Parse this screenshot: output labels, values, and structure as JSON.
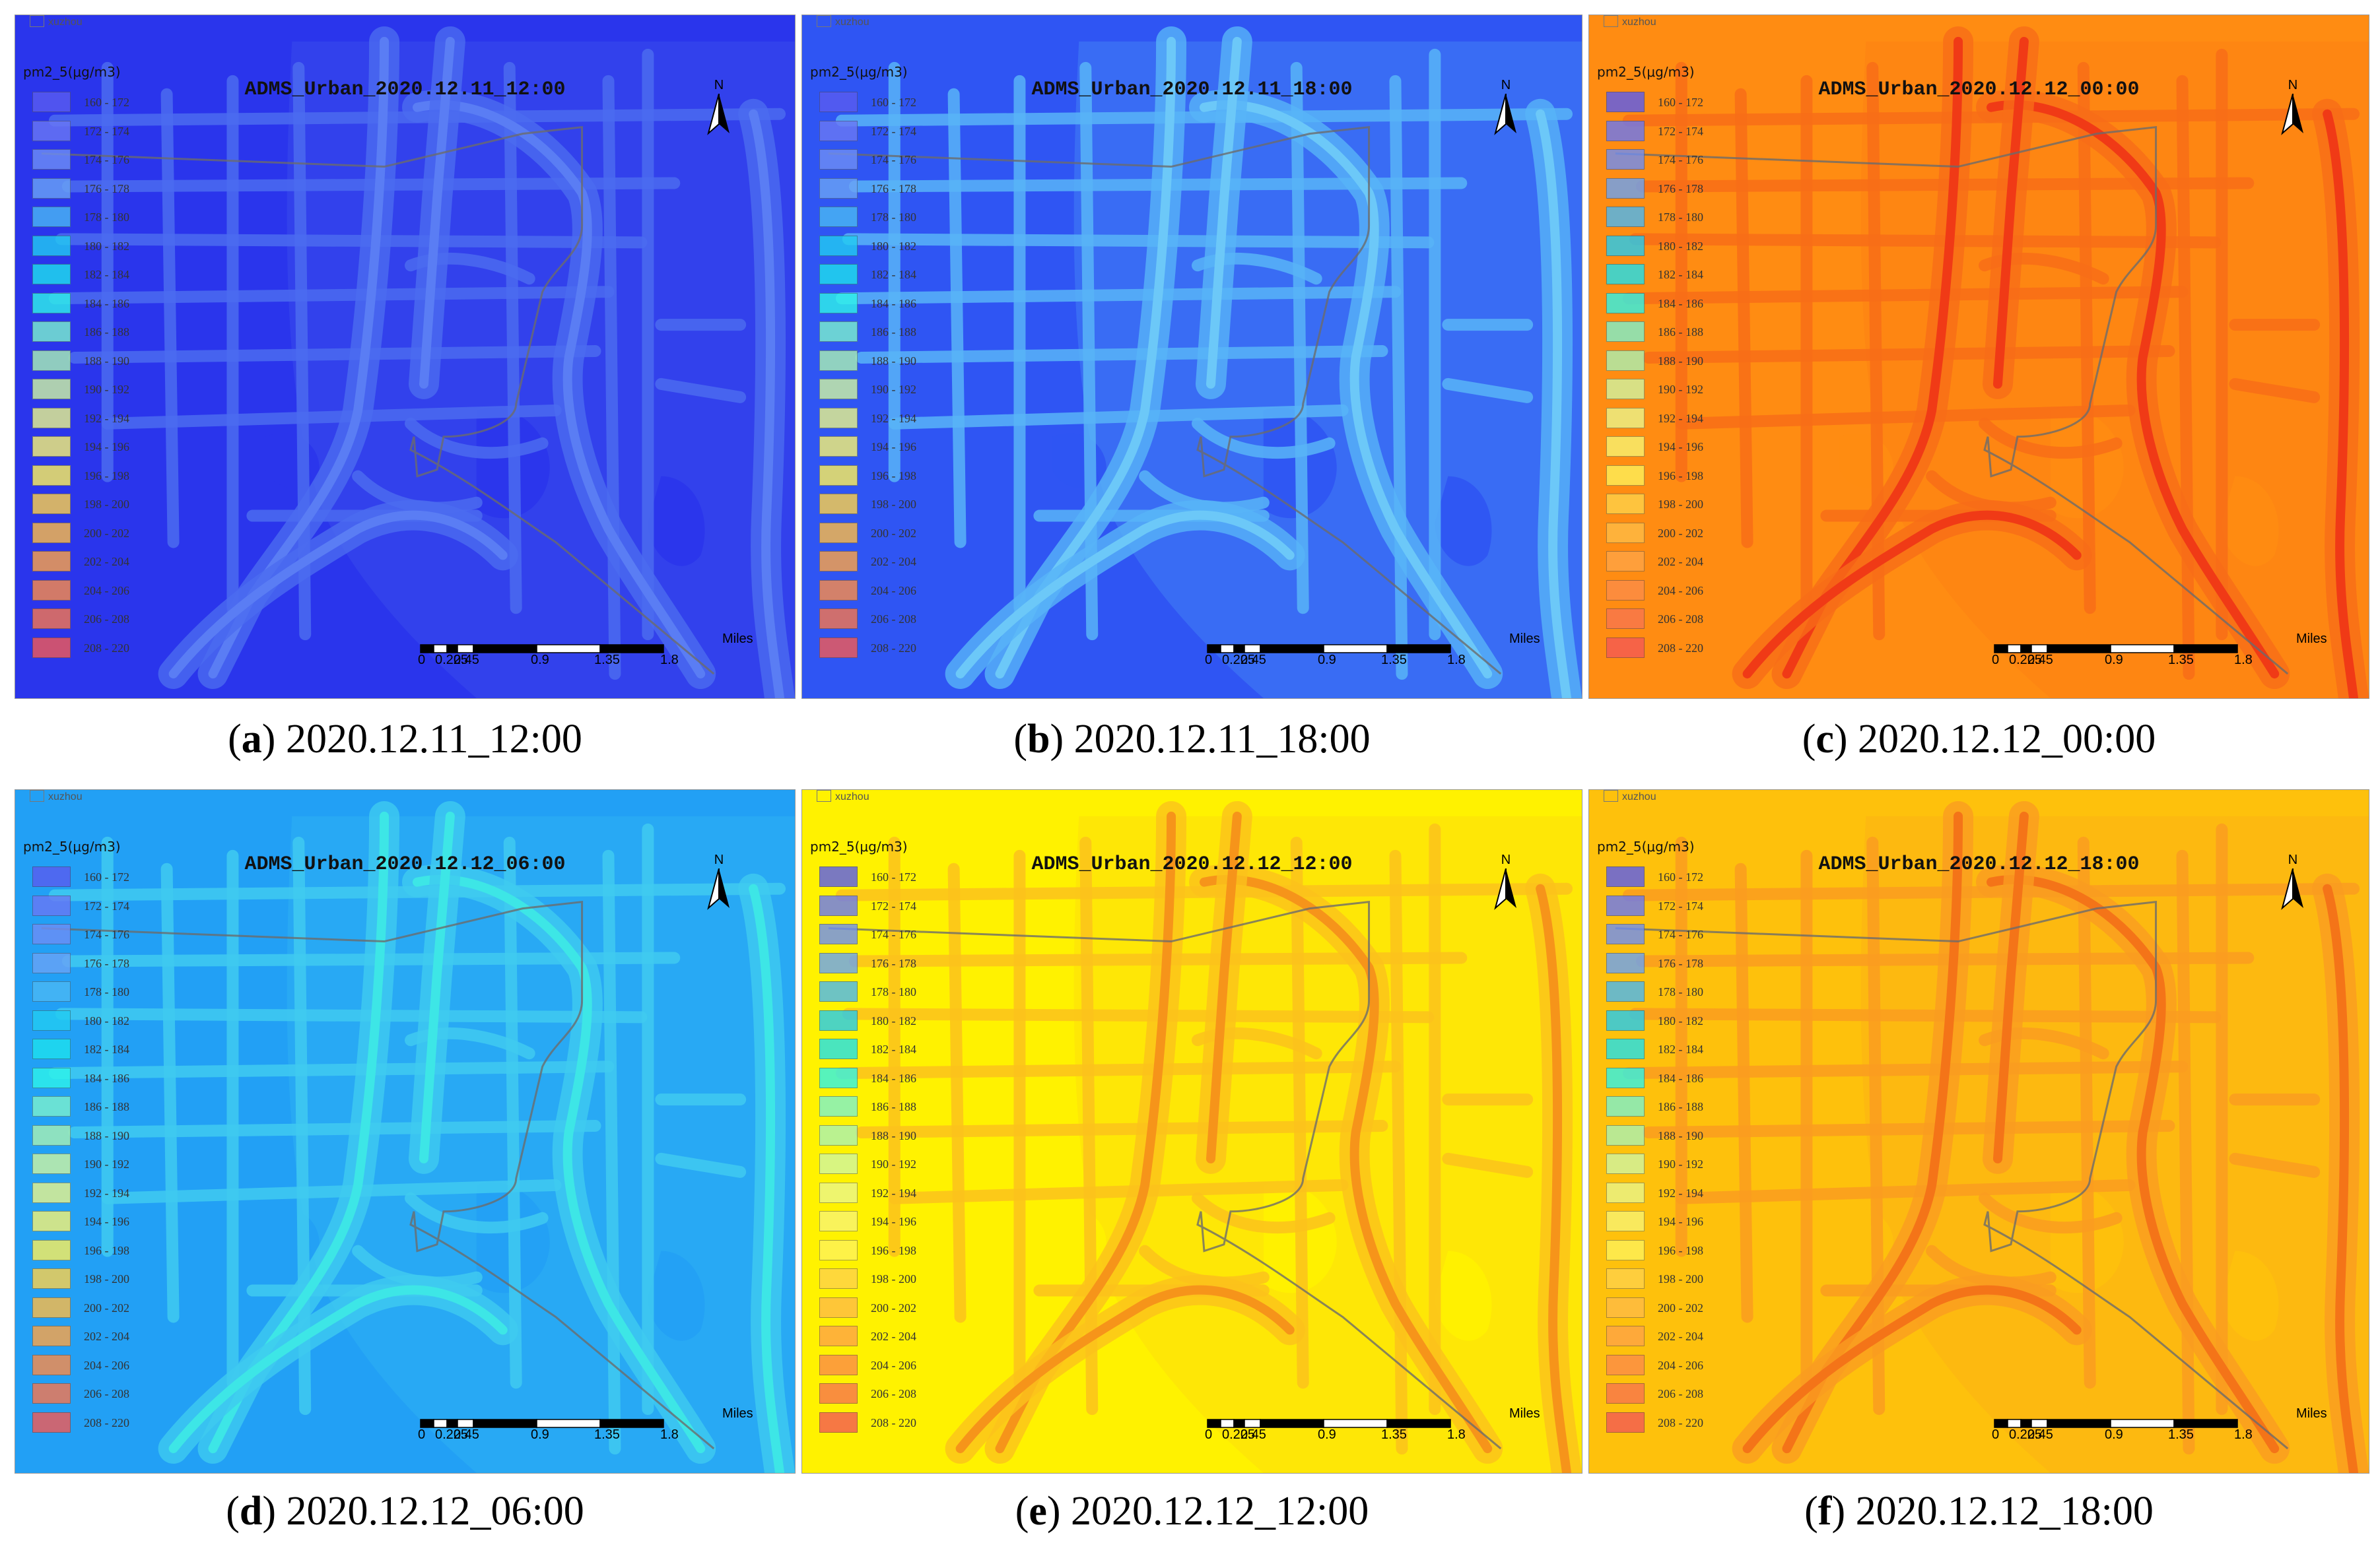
{
  "legend": {
    "layer_name": "xuzhou",
    "title": "pm2_5(μg/m3)",
    "items": [
      {
        "label": "160 - 172",
        "color": "#5a5cf0"
      },
      {
        "label": "172 - 174",
        "color": "#6a78f4"
      },
      {
        "label": "174 - 176",
        "color": "#6e8ef5"
      },
      {
        "label": "176 - 178",
        "color": "#6aa3f5"
      },
      {
        "label": "178 - 180",
        "color": "#4ab8f4"
      },
      {
        "label": "180 - 182",
        "color": "#22ccf2"
      },
      {
        "label": "182 - 184",
        "color": "#1ee2ee"
      },
      {
        "label": "184 - 186",
        "color": "#2ef4ea"
      },
      {
        "label": "186 - 188",
        "color": "#7cf2ce"
      },
      {
        "label": "188 - 190",
        "color": "#aaf2b4"
      },
      {
        "label": "190 - 192",
        "color": "#cff6a2"
      },
      {
        "label": "192 - 194",
        "color": "#eaf68a"
      },
      {
        "label": "194 - 196",
        "color": "#f8f472"
      },
      {
        "label": "196 - 198",
        "color": "#fef25a"
      },
      {
        "label": "198 - 200",
        "color": "#fed24a"
      },
      {
        "label": "200 - 202",
        "color": "#febc46"
      },
      {
        "label": "202 - 204",
        "color": "#fea446"
      },
      {
        "label": "204 - 206",
        "color": "#fc8c48"
      },
      {
        "label": "206 - 208",
        "color": "#f8764e"
      },
      {
        "label": "208 - 220",
        "color": "#f45a55"
      }
    ]
  },
  "north_label": "N",
  "scale": {
    "unit": "Miles",
    "ticks": [
      "0",
      "0.225",
      "0.45",
      "0.9",
      "1.35",
      "1.8"
    ]
  },
  "panels": [
    {
      "letter": "a",
      "title": "ADMS_Urban_2020.12.11_12:00",
      "caption": " 2020.12.11_12:00",
      "base_color": "#2a35ec",
      "road_color": "#4b6bf0",
      "major_color": "#5a7df4",
      "overlay_alpha": 0.55
    },
    {
      "letter": "b",
      "title": "ADMS_Urban_2020.12.11_18:00",
      "caption": " 2020.12.11_18:00",
      "base_color": "#2f55f3",
      "road_color": "#58b4f7",
      "major_color": "#6cc8f8",
      "overlay_alpha": 0.55
    },
    {
      "letter": "c",
      "title": "ADMS_Urban_2020.12.12_00:00",
      "caption": " 2020.12.12_00:00",
      "base_color": "#ff8c12",
      "road_color": "#f86d18",
      "major_color": "#f03a16",
      "overlay_alpha": 0.4
    },
    {
      "letter": "d",
      "title": "ADMS_Urban_2020.12.12_06:00",
      "caption": " 2020.12.12_06:00",
      "base_color": "#22a0f5",
      "road_color": "#3fcaf0",
      "major_color": "#3de6e6",
      "overlay_alpha": 0.5
    },
    {
      "letter": "e",
      "title": "ADMS_Urban_2020.12.12_12:00",
      "caption": " 2020.12.12_12:00",
      "base_color": "#fff200",
      "road_color": "#fbc21c",
      "major_color": "#f6941a",
      "overlay_alpha": 0.5
    },
    {
      "letter": "f",
      "title": "ADMS_Urban_2020.12.12_18:00",
      "caption": " 2020.12.12_18:00",
      "base_color": "#fec10c",
      "road_color": "#fa9c20",
      "major_color": "#f47418",
      "overlay_alpha": 0.5
    }
  ]
}
